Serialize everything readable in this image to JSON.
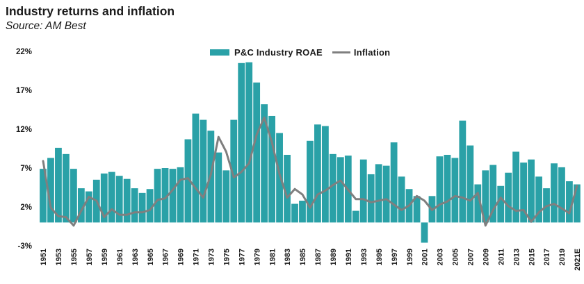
{
  "header": {
    "title": "Industry returns and inflation",
    "source": "Source: AM Best"
  },
  "legend": {
    "bar_label": "P&C Industry ROAE",
    "line_label": "Inflation"
  },
  "colors": {
    "bar": "#2aa1a7",
    "line": "#7f7f7f",
    "text": "#1a1a1a"
  },
  "chart_data": {
    "type": "bar",
    "title": "Industry returns and inflation",
    "subtitle": "Source: AM Best",
    "categories": [
      "1951",
      "1952",
      "1953",
      "1954",
      "1955",
      "1956",
      "1957",
      "1958",
      "1959",
      "1960",
      "1961",
      "1962",
      "1963",
      "1964",
      "1965",
      "1966",
      "1967",
      "1968",
      "1969",
      "1970",
      "1971",
      "1972",
      "1973",
      "1974",
      "1975",
      "1976",
      "1977",
      "1978",
      "1979",
      "1980",
      "1981",
      "1982",
      "1983",
      "1984",
      "1985",
      "1986",
      "1987",
      "1988",
      "1989",
      "1990",
      "1991",
      "1992",
      "1993",
      "1994",
      "1995",
      "1996",
      "1997",
      "1998",
      "1999",
      "2000",
      "2001",
      "2002",
      "2003",
      "2004",
      "2005",
      "2006",
      "2007",
      "2008",
      "2009",
      "2010",
      "2011",
      "2012",
      "2013",
      "2014",
      "2015",
      "2016",
      "2017",
      "2018",
      "2019",
      "2020",
      "2021E"
    ],
    "series": [
      {
        "name": "P&C Industry ROAE",
        "type": "bar",
        "values": [
          6.9,
          8.3,
          9.6,
          8.8,
          6.9,
          4.4,
          4.0,
          5.5,
          6.3,
          6.5,
          6.0,
          5.6,
          4.4,
          3.8,
          4.3,
          6.9,
          7.0,
          6.9,
          7.1,
          10.7,
          14.0,
          13.2,
          11.8,
          9.0,
          6.7,
          13.2,
          20.5,
          20.6,
          18.0,
          15.2,
          13.7,
          11.5,
          8.7,
          2.4,
          2.8,
          10.5,
          12.6,
          12.4,
          8.8,
          8.4,
          8.6,
          1.5,
          8.1,
          6.2,
          7.5,
          7.3,
          10.3,
          5.9,
          4.3,
          3.4,
          -2.6,
          3.4,
          8.5,
          8.7,
          8.3,
          13.1,
          9.9,
          4.9,
          6.7,
          7.4,
          4.7,
          6.4,
          9.1,
          7.7,
          8.1,
          5.9,
          4.4,
          7.6,
          7.1,
          5.3,
          4.9
        ]
      },
      {
        "name": "Inflation",
        "type": "line",
        "values": [
          7.9,
          1.9,
          0.8,
          0.7,
          -0.4,
          1.5,
          3.3,
          2.8,
          0.7,
          1.7,
          1.0,
          1.0,
          1.3,
          1.3,
          1.6,
          2.9,
          3.1,
          4.2,
          5.5,
          5.7,
          4.4,
          3.2,
          6.2,
          11.0,
          9.1,
          5.8,
          6.5,
          7.6,
          11.3,
          13.5,
          10.3,
          6.2,
          3.2,
          4.3,
          3.6,
          1.9,
          3.6,
          4.1,
          4.8,
          5.4,
          4.2,
          3.0,
          3.0,
          2.6,
          2.8,
          3.0,
          2.3,
          1.6,
          2.2,
          3.4,
          2.8,
          1.6,
          2.3,
          2.7,
          3.4,
          3.2,
          2.8,
          3.8,
          -0.4,
          1.6,
          3.2,
          2.1,
          1.5,
          1.6,
          0.1,
          1.3,
          2.1,
          2.4,
          1.8,
          1.2,
          4.7
        ]
      }
    ],
    "ylim": [
      -3,
      22
    ],
    "yticks": [
      22,
      17,
      12,
      7,
      2,
      -3
    ],
    "ytick_labels": [
      "22%",
      "17%",
      "12%",
      "7%",
      "2%",
      "-3%"
    ],
    "xtick_step": 2,
    "grid": false,
    "legend_position": "top-center"
  }
}
